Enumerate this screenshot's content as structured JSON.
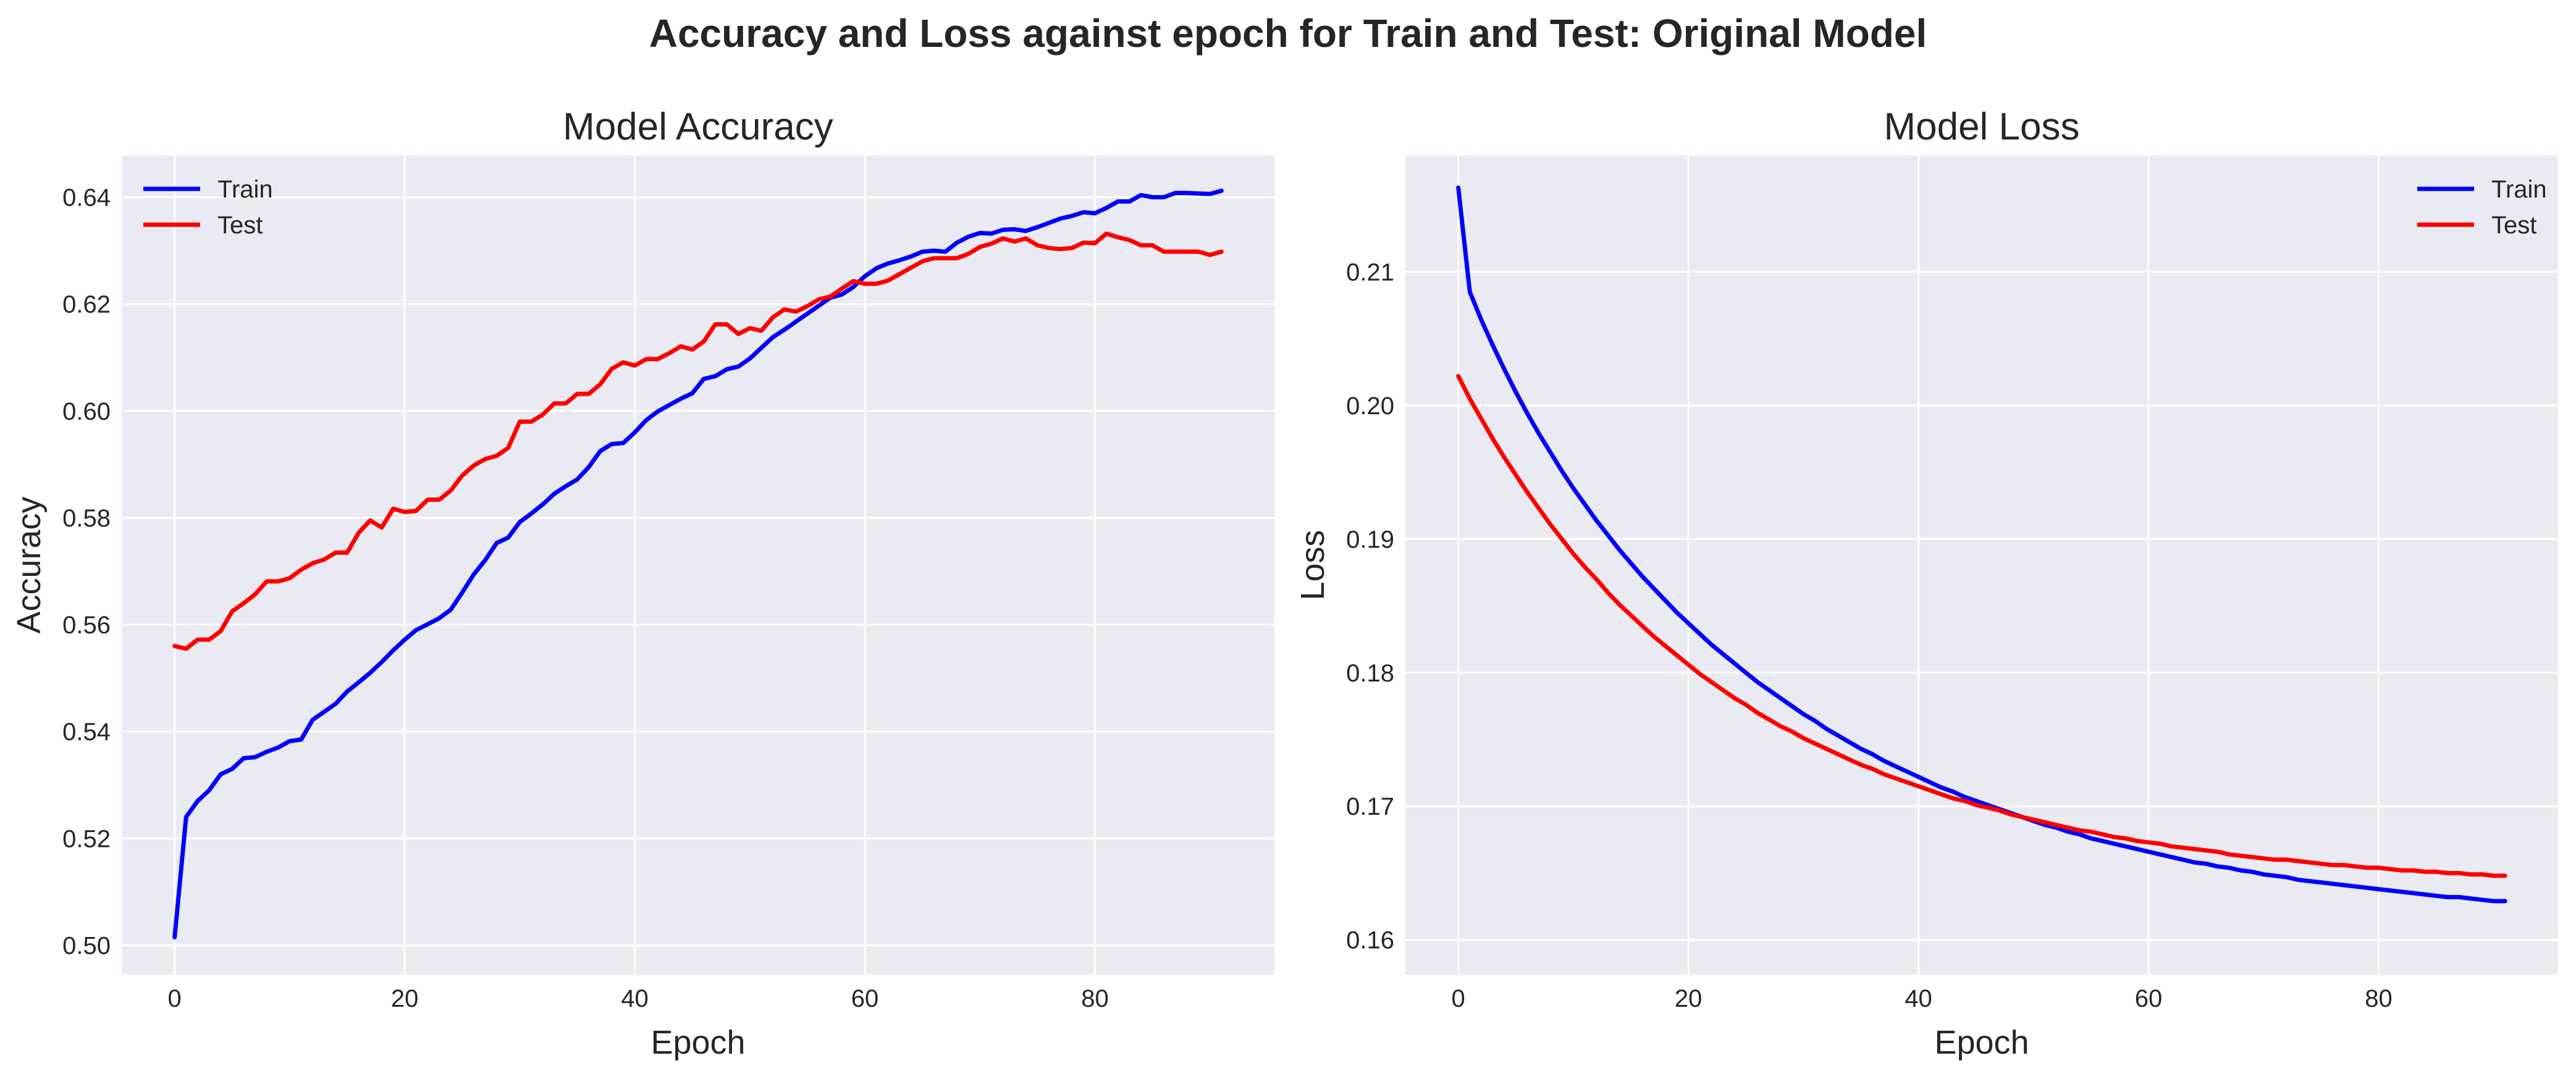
{
  "figure_title": "Accuracy and Loss against epoch for Train and Test: Original Model",
  "chart_data": [
    {
      "type": "line",
      "title": "Model Accuracy",
      "xlabel": "Epoch",
      "ylabel": "Accuracy",
      "xlim": [
        -4.6,
        95.6
      ],
      "ylim": [
        0.4945,
        0.6478
      ],
      "xticks": [
        0,
        20,
        40,
        60,
        80
      ],
      "yticks": [
        0.5,
        0.52,
        0.54,
        0.56,
        0.58,
        0.6,
        0.62,
        0.64
      ],
      "ytick_labels": [
        "0.50",
        "0.52",
        "0.54",
        "0.56",
        "0.58",
        "0.60",
        "0.62",
        "0.64"
      ],
      "grid": true,
      "legend_position": "upper left",
      "series": [
        {
          "name": "Train",
          "color": "#0000ff",
          "values": [
            0.5015,
            0.524,
            0.527,
            0.529,
            0.532,
            0.533,
            0.535,
            0.5352,
            0.5362,
            0.537,
            0.5382,
            0.5385,
            0.5422,
            0.5437,
            0.5452,
            0.5475,
            0.5492,
            0.551,
            0.553,
            0.5552,
            0.5572,
            0.559,
            0.5601,
            0.5612,
            0.5628,
            0.566,
            0.5694,
            0.5721,
            0.5753,
            0.5763,
            0.5792,
            0.5808,
            0.5825,
            0.5845,
            0.5859,
            0.5872,
            0.5895,
            0.5925,
            0.5938,
            0.594,
            0.596,
            0.5983,
            0.5999,
            0.6011,
            0.6023,
            0.6033,
            0.606,
            0.6065,
            0.6078,
            0.6083,
            0.6098,
            0.6118,
            0.6138,
            0.6152,
            0.6167,
            0.6182,
            0.6197,
            0.6212,
            0.6218,
            0.6232,
            0.6252,
            0.6267,
            0.6276,
            0.6282,
            0.6289,
            0.6298,
            0.63,
            0.6298,
            0.6315,
            0.6326,
            0.6333,
            0.6332,
            0.6339,
            0.634,
            0.6337,
            0.6344,
            0.6352,
            0.636,
            0.6365,
            0.6372,
            0.637,
            0.638,
            0.6392,
            0.6392,
            0.6404,
            0.64,
            0.64,
            0.6408,
            0.6408,
            0.6407,
            0.6406,
            0.6412
          ]
        },
        {
          "name": "Test",
          "color": "#ff0000",
          "values": [
            0.556,
            0.5555,
            0.5572,
            0.5572,
            0.5588,
            0.5625,
            0.564,
            0.5657,
            0.5681,
            0.5681,
            0.5687,
            0.5703,
            0.5715,
            0.5722,
            0.5735,
            0.5735,
            0.5772,
            0.5795,
            0.5782,
            0.5817,
            0.5811,
            0.5813,
            0.5834,
            0.5834,
            0.5851,
            0.5879,
            0.5898,
            0.591,
            0.5916,
            0.5931,
            0.598,
            0.598,
            0.5993,
            0.6014,
            0.6014,
            0.6032,
            0.6032,
            0.605,
            0.6079,
            0.6091,
            0.6085,
            0.6097,
            0.6097,
            0.6108,
            0.6121,
            0.6115,
            0.613,
            0.6162,
            0.6162,
            0.6144,
            0.6155,
            0.615,
            0.6175,
            0.619,
            0.6186,
            0.6196,
            0.6209,
            0.6214,
            0.6229,
            0.6243,
            0.6238,
            0.6238,
            0.6244,
            0.6256,
            0.6268,
            0.628,
            0.6286,
            0.6286,
            0.6286,
            0.6294,
            0.6307,
            0.6313,
            0.6323,
            0.6317,
            0.6323,
            0.631,
            0.6305,
            0.6303,
            0.6305,
            0.6315,
            0.6314,
            0.6332,
            0.6325,
            0.632,
            0.631,
            0.631,
            0.6298,
            0.6298,
            0.6298,
            0.6298,
            0.6292,
            0.6298
          ]
        }
      ]
    },
    {
      "type": "line",
      "title": "Model Loss",
      "xlabel": "Epoch",
      "ylabel": "Loss",
      "xlim": [
        -4.6,
        95.6
      ],
      "ylim": [
        0.1574,
        0.2187
      ],
      "xticks": [
        0,
        20,
        40,
        60,
        80
      ],
      "yticks": [
        0.16,
        0.17,
        0.18,
        0.19,
        0.2,
        0.21
      ],
      "ytick_labels": [
        "0.16",
        "0.17",
        "0.18",
        "0.19",
        "0.20",
        "0.21"
      ],
      "grid": true,
      "legend_position": "upper right",
      "series": [
        {
          "name": "Train",
          "color": "#0000ff",
          "values": [
            0.2163,
            0.2085,
            0.2064,
            0.2045,
            0.2027,
            0.201,
            0.1994,
            0.1979,
            0.1965,
            0.1951,
            0.1938,
            0.1926,
            0.1914,
            0.1903,
            0.1892,
            0.1882,
            0.1872,
            0.1863,
            0.1854,
            0.1845,
            0.1837,
            0.1829,
            0.1821,
            0.1814,
            0.1807,
            0.18,
            0.1793,
            0.1787,
            0.1781,
            0.1775,
            0.1769,
            0.1764,
            0.1758,
            0.1753,
            0.1748,
            0.1743,
            0.1739,
            0.1734,
            0.173,
            0.1726,
            0.1722,
            0.1718,
            0.1714,
            0.1711,
            0.1707,
            0.1704,
            0.1701,
            0.1698,
            0.1695,
            0.1692,
            0.1689,
            0.1686,
            0.1684,
            0.1681,
            0.1679,
            0.1676,
            0.1674,
            0.1672,
            0.167,
            0.1668,
            0.1666,
            0.1664,
            0.1662,
            0.166,
            0.1658,
            0.1657,
            0.1655,
            0.1654,
            0.1652,
            0.1651,
            0.1649,
            0.1648,
            0.1647,
            0.1645,
            0.1644,
            0.1643,
            0.1642,
            0.1641,
            0.164,
            0.1639,
            0.1638,
            0.1637,
            0.1636,
            0.1635,
            0.1634,
            0.1633,
            0.1632,
            0.1632,
            0.1631,
            0.163,
            0.1629,
            0.1629
          ]
        },
        {
          "name": "Test",
          "color": "#ff0000",
          "values": [
            0.2022,
            0.2005,
            0.199,
            0.1975,
            0.1961,
            0.1948,
            0.1935,
            0.1923,
            0.1911,
            0.19,
            0.1889,
            0.1879,
            0.187,
            0.186,
            0.1851,
            0.1843,
            0.1835,
            0.1827,
            0.182,
            0.1813,
            0.1806,
            0.1799,
            0.1793,
            0.1787,
            0.1781,
            0.1776,
            0.177,
            0.1765,
            0.176,
            0.1756,
            0.1751,
            0.1747,
            0.1743,
            0.1739,
            0.1735,
            0.1731,
            0.1728,
            0.1724,
            0.1721,
            0.1718,
            0.1715,
            0.1712,
            0.1709,
            0.1706,
            0.1704,
            0.1701,
            0.1699,
            0.1697,
            0.1694,
            0.1692,
            0.169,
            0.1688,
            0.1686,
            0.1684,
            0.1682,
            0.1681,
            0.1679,
            0.1677,
            0.1676,
            0.1674,
            0.1673,
            0.1672,
            0.167,
            0.1669,
            0.1668,
            0.1667,
            0.1666,
            0.1664,
            0.1663,
            0.1662,
            0.1661,
            0.166,
            0.166,
            0.1659,
            0.1658,
            0.1657,
            0.1656,
            0.1656,
            0.1655,
            0.1654,
            0.1654,
            0.1653,
            0.1652,
            0.1652,
            0.1651,
            0.1651,
            0.165,
            0.165,
            0.1649,
            0.1649,
            0.1648,
            0.1648
          ]
        }
      ]
    }
  ]
}
